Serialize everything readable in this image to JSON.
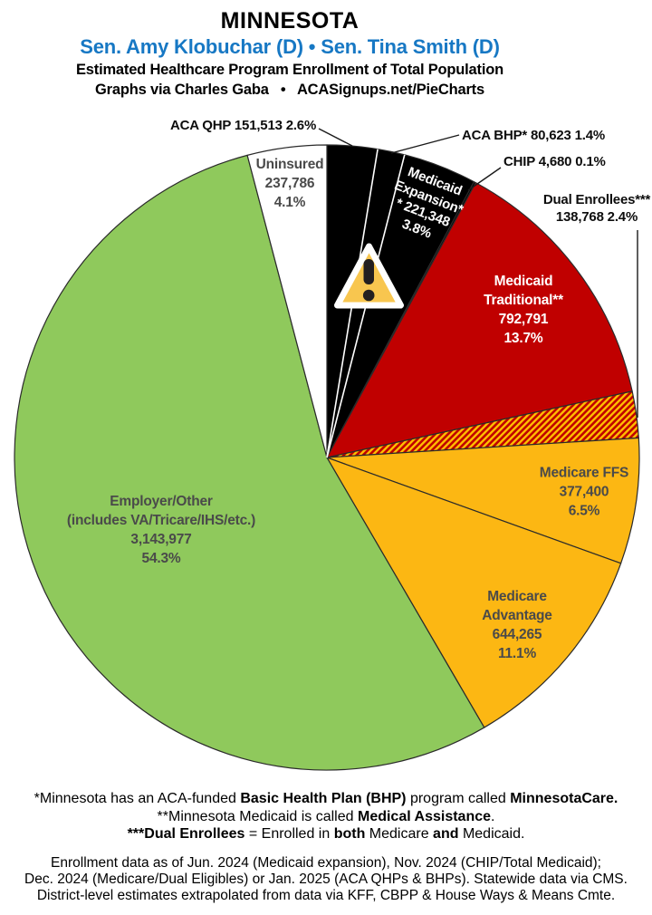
{
  "header": {
    "state": "MINNESOTA",
    "senators": "Sen. Amy Klobuchar (D) • Sen. Tina Smith (D)",
    "senators_color": "#1778C4",
    "subtitle1": "Estimated Healthcare Program Enrollment of Total Population",
    "subtitle2": "Graphs via Charles Gaba   •   ACASignups.net/PieCharts"
  },
  "chart_data": {
    "type": "pie",
    "title": "Estimated Healthcare Program Enrollment of Total Population",
    "start_angle_deg": 0,
    "direction": "clockwise",
    "total_pct": 100.0,
    "slices": [
      {
        "name": "ACA QHP",
        "value": 151513,
        "pct": 2.6,
        "color": "#000000",
        "label": "ACA QHP 151,513 2.6%",
        "label_style": "callout"
      },
      {
        "name": "ACA BHP",
        "value": 80623,
        "pct": 1.4,
        "color": "#000000",
        "label": "ACA BHP* 80,623 1.4%",
        "label_style": "callout"
      },
      {
        "name": "Medicaid Expansion",
        "value": 221348,
        "pct": 3.8,
        "color": "#000000",
        "label_lines": [
          "Medicaid",
          "Expansion*",
          "* 221,348",
          "3.8%"
        ],
        "label_style": "inside-rotated-white"
      },
      {
        "name": "CHIP",
        "value": 4680,
        "pct": 0.1,
        "color": "#000000",
        "label": "CHIP 4,680 0.1%",
        "label_style": "callout"
      },
      {
        "name": "Medicaid Traditional",
        "value": 792791,
        "pct": 13.7,
        "color": "#C00000",
        "label_lines": [
          "Medicaid",
          "Traditional**",
          "792,791",
          "13.7%"
        ],
        "label_style": "inside-white"
      },
      {
        "name": "Dual Enrollees",
        "value": 138768,
        "pct": 2.4,
        "color": "hatch-red-yellow",
        "label_lines": [
          "Dual Enrollees***",
          "138,768 2.4%"
        ],
        "label_style": "callout"
      },
      {
        "name": "Medicare FFS",
        "value": 377400,
        "pct": 6.5,
        "color": "#FCB713",
        "label_lines": [
          "Medicare FFS",
          "377,400",
          "6.5%"
        ],
        "label_style": "inside"
      },
      {
        "name": "Medicare Advantage",
        "value": 644265,
        "pct": 11.1,
        "color": "#FCB713",
        "label_lines": [
          "Medicare",
          "Advantage",
          "644,265",
          "11.1%"
        ],
        "label_style": "inside"
      },
      {
        "name": "Employer/Other",
        "value": 3143977,
        "pct": 54.3,
        "color": "#8FC95C",
        "label_lines": [
          "Employer/Other",
          "(includes VA/Tricare/IHS/etc.)",
          "3,143,977",
          "54.3%"
        ],
        "label_style": "inside"
      },
      {
        "name": "Uninsured",
        "value": 237786,
        "pct": 4.1,
        "color": "#FFFFFF",
        "label_lines": [
          "Uninsured",
          "237,786",
          "4.1%"
        ],
        "label_style": "inside"
      }
    ],
    "white_separators_after_slice": [
      0,
      1
    ],
    "hatch": {
      "bg": "#C00000",
      "stripe": "#FFC000"
    },
    "slice_outline_color": "#2B2B2B",
    "warning_icon": {
      "name": "warning-triangle-icon",
      "fill": "#F8C64F",
      "border": "#FFFFFF",
      "glyph_color": "#231F20"
    },
    "legend": "none"
  },
  "footnotes": {
    "block1": [
      [
        {
          "t": "*Minnesota has an ACA-funded ",
          "b": false
        },
        {
          "t": "Basic Health Plan (BHP)",
          "b": true
        },
        {
          "t": " program called ",
          "b": false
        },
        {
          "t": "MinnesotaCare.",
          "b": true
        }
      ],
      [
        {
          "t": "**Minnesota Medicaid is called ",
          "b": false
        },
        {
          "t": "Medical Assistance",
          "b": true
        },
        {
          "t": ".",
          "b": false
        }
      ],
      [
        {
          "t": "***Dual Enrollees",
          "b": true
        },
        {
          "t": " = Enrolled in ",
          "b": false
        },
        {
          "t": "both",
          "b": true
        },
        {
          "t": " Medicare ",
          "b": false
        },
        {
          "t": "and",
          "b": true
        },
        {
          "t": " Medicaid.",
          "b": false
        }
      ]
    ],
    "block2": [
      "Enrollment data as of Jun. 2024 (Medicaid expansion), Nov. 2024 (CHIP/Total Medicaid);",
      "Dec. 2024 (Medicare/Dual Eligibles) or Jan. 2025 (ACA QHPs & BHPs). Statewide data via CMS.",
      "District-level estimates extrapolated from data via KFF, CBPP & House Ways & Means Cmte."
    ]
  }
}
